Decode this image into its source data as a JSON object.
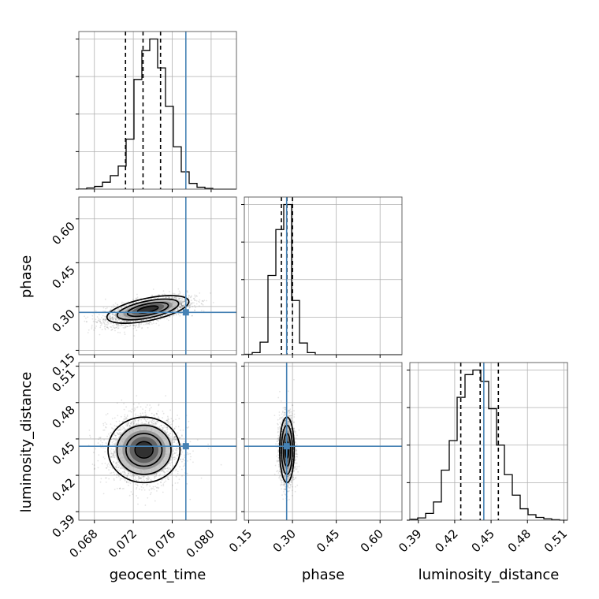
{
  "chart_data": {
    "type": "corner",
    "parameters": [
      "geocent_time",
      "phase",
      "luminosity_distance"
    ],
    "axis_labels": {
      "geocent_time": "geocent_time",
      "phase": "phase",
      "luminosity_distance": "luminosity_distance"
    },
    "ticks": {
      "geocent_time": {
        "range": [
          0.0664,
          0.0826
        ],
        "values": [
          0.068,
          0.072,
          0.076,
          0.08
        ],
        "labels": [
          "0.068",
          "0.072",
          "0.076",
          "0.080"
        ]
      },
      "phase": {
        "range": [
          0.135,
          0.675
        ],
        "values": [
          0.15,
          0.3,
          0.45,
          0.6
        ],
        "labels": [
          "0.15",
          "0.30",
          "0.45",
          "0.60"
        ]
      },
      "luminosity_distance": {
        "range": [
          0.383,
          0.513
        ],
        "values": [
          0.39,
          0.42,
          0.45,
          0.48,
          0.51
        ],
        "labels": [
          "0.39",
          "0.42",
          "0.45",
          "0.48",
          "0.51"
        ]
      }
    },
    "truths": {
      "geocent_time": 0.0774,
      "phase": 0.28,
      "luminosity_distance": 0.444
    },
    "quantiles": {
      "geocent_time": [
        0.0712,
        0.073,
        0.0748
      ],
      "phase": [
        0.262,
        0.281,
        0.3
      ],
      "luminosity_distance": [
        0.425,
        0.441,
        0.456
      ]
    },
    "histograms": {
      "geocent_time": {
        "edges": [
          0.0664,
          0.06721,
          0.06802,
          0.06883,
          0.06964,
          0.07045,
          0.07126,
          0.07207,
          0.07288,
          0.07369,
          0.0745,
          0.07531,
          0.07612,
          0.07693,
          0.07774,
          0.07855,
          0.07936,
          0.08017,
          0.08098,
          0.08179,
          0.0826
        ],
        "counts": [
          0.5,
          3,
          7,
          18,
          35,
          60,
          130,
          285,
          360,
          390,
          315,
          215,
          110,
          45,
          15,
          5,
          2,
          0,
          0,
          0
        ]
      },
      "phase": {
        "edges": [
          0.135,
          0.162,
          0.189,
          0.216,
          0.243,
          0.27,
          0.297,
          0.324,
          0.351,
          0.378,
          0.405,
          0.432,
          0.459,
          0.486,
          0.513,
          0.54,
          0.567,
          0.594,
          0.621,
          0.648,
          0.675
        ],
        "counts": [
          1,
          5,
          30,
          190,
          300,
          360,
          130,
          28,
          5,
          0,
          0,
          0,
          0,
          0,
          0,
          0,
          0,
          0,
          0,
          0
        ]
      },
      "luminosity_distance": {
        "edges": [
          0.383,
          0.3895,
          0.396,
          0.4025,
          0.409,
          0.4155,
          0.422,
          0.4285,
          0.435,
          0.4415,
          0.448,
          0.4545,
          0.461,
          0.4675,
          0.474,
          0.4805,
          0.487,
          0.4935,
          0.5,
          0.5065,
          0.513
        ],
        "counts": [
          2,
          5,
          15,
          40,
          110,
          175,
          270,
          320,
          330,
          305,
          245,
          165,
          100,
          55,
          25,
          12,
          6,
          3,
          1,
          0
        ]
      }
    },
    "correlations": [
      {
        "x": "geocent_time",
        "y": "phase",
        "center": [
          0.0733,
          0.285
        ],
        "sd": [
          0.0021,
          0.024
        ],
        "rho": 0.6,
        "density_peak": [
          0.0735,
          0.29
        ]
      },
      {
        "x": "geocent_time",
        "y": "luminosity_distance",
        "center": [
          0.0731,
          0.441
        ],
        "sd": [
          0.00185,
          0.0135
        ],
        "rho": 0.0,
        "density_peak": [
          0.0731,
          0.441
        ]
      },
      {
        "x": "phase",
        "y": "luminosity_distance",
        "center": [
          0.281,
          0.441
        ],
        "sd": [
          0.0125,
          0.0135
        ],
        "rho": 0.0,
        "density_peak": [
          0.281,
          0.441
        ]
      }
    ]
  }
}
